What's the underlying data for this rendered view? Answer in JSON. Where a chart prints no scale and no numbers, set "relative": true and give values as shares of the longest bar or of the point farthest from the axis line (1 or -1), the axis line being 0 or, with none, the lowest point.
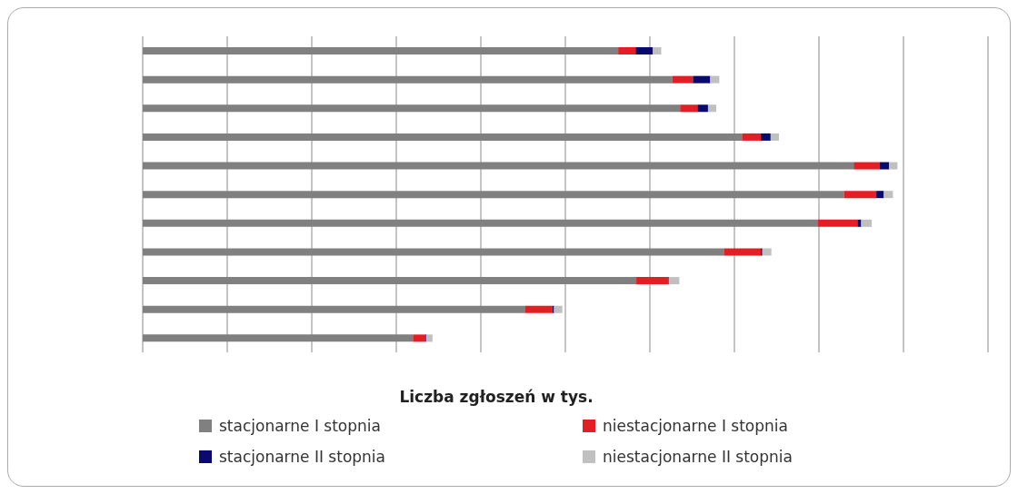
{
  "chart_data": {
    "type": "bar",
    "orientation": "horizontal",
    "stacked": true,
    "relative": true,
    "xlabel": "Liczba zgłoszeń w tys.",
    "grid": "x",
    "legend": "bottom",
    "categories": [
      null,
      null,
      null,
      null,
      null,
      null,
      null,
      null,
      null,
      null,
      null
    ],
    "series": [
      {
        "name": "stacjonarne I stopnia",
        "color": "#808080",
        "values": [
          0.63,
          0.702,
          0.712,
          0.794,
          0.942,
          0.929,
          0.894,
          0.77,
          0.654,
          0.507,
          0.358
        ]
      },
      {
        "name": "niestacjonarne I stopnia",
        "color": "#e31e24",
        "values": [
          0.023,
          0.027,
          0.023,
          0.025,
          0.034,
          0.043,
          0.053,
          0.049,
          0.042,
          0.036,
          0.017
        ]
      },
      {
        "name": "stacjonarne II stopnia",
        "color": "#0a0a6e",
        "values": [
          0.023,
          0.023,
          0.014,
          0.013,
          0.013,
          0.01,
          0.005,
          0.002,
          0.001,
          0.002,
          0.001
        ]
      },
      {
        "name": "niestacjonarne II stopnia",
        "color": "#c0c0c0",
        "values": [
          0.011,
          0.012,
          0.011,
          0.011,
          0.011,
          0.012,
          0.014,
          0.012,
          0.014,
          0.011,
          0.008
        ]
      }
    ]
  }
}
